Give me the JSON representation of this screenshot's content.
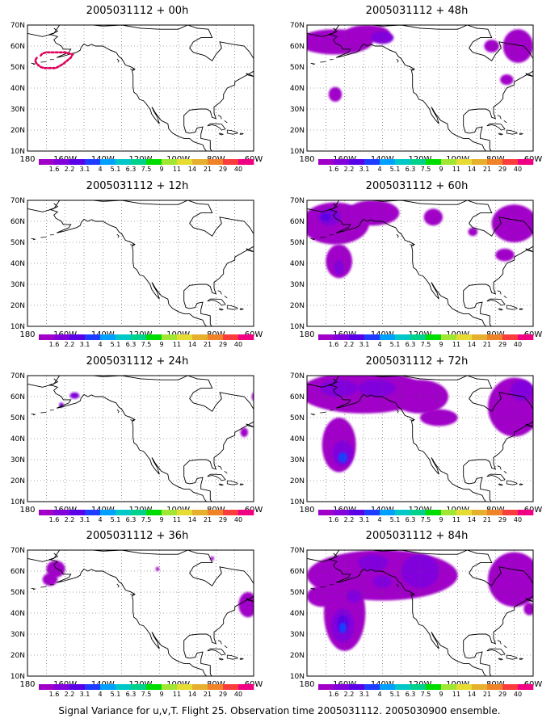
{
  "caption": "Signal Variance for u,v,T. Flight 25. Observation time 2005031112. 2005030900 ensemble.",
  "axes": {
    "lat_labels": [
      "70N",
      "60N",
      "50N",
      "40N",
      "30N",
      "20N",
      "10N"
    ],
    "lon_labels": [
      "180",
      "160W",
      "140W",
      "120W",
      "100W",
      "80W",
      "60W"
    ]
  },
  "colorbar": {
    "labels": [
      "1.6",
      "2.2",
      "3.1",
      "4",
      "5.1",
      "6.3",
      "7.5",
      "9",
      "11",
      "14",
      "21",
      "29",
      "40"
    ],
    "colors": [
      "#a000c8",
      "#8200dc",
      "#5a00e6",
      "#1e3cff",
      "#00a0ff",
      "#00c8c8",
      "#00d28c",
      "#00dc00",
      "#a0e632",
      "#e6dc32",
      "#e6af2d",
      "#f08228",
      "#fa3c3c",
      "#f00082"
    ]
  },
  "chart_data": [
    {
      "type": "heatmap",
      "title": "2005031112 + 00h",
      "xlim": [
        -180,
        -60
      ],
      "ylim": [
        10,
        70
      ],
      "overlay": {
        "type": "contour-dotted",
        "color": "#e0005a",
        "lon": [
          -173,
          -172,
          -170,
          -168,
          -166,
          -164,
          -162,
          -160,
          -158,
          -156,
          -157,
          -159,
          -161,
          -163,
          -165,
          -167,
          -169,
          -171,
          -173,
          -175,
          -176,
          -175
        ],
        "lat": [
          55.5,
          56.5,
          57,
          57,
          57,
          57,
          57,
          57,
          56.5,
          56,
          54.5,
          53,
          51.5,
          50.5,
          49.5,
          49.5,
          49.5,
          49.5,
          50,
          51.5,
          53,
          54.5
        ]
      },
      "blobs": []
    },
    {
      "type": "heatmap",
      "title": "2005031112 + 12h",
      "xlim": [
        -180,
        -60
      ],
      "ylim": [
        10,
        70
      ],
      "blobs": []
    },
    {
      "type": "heatmap",
      "title": "2005031112 + 24h",
      "xlim": [
        -180,
        -60
      ],
      "ylim": [
        10,
        70
      ],
      "blobs": [
        {
          "lon": -155,
          "lat": 60.5,
          "rx": 2.5,
          "ry": 1.5,
          "level": 1
        },
        {
          "lon": -162,
          "lat": 56,
          "rx": 1.2,
          "ry": 1.2,
          "level": 1
        },
        {
          "lon": -65,
          "lat": 43,
          "rx": 2,
          "ry": 2.2,
          "level": 0
        },
        {
          "lon": -60,
          "lat": 60,
          "rx": 1,
          "ry": 2,
          "level": 0
        }
      ]
    },
    {
      "type": "heatmap",
      "title": "2005031112 + 36h",
      "xlim": [
        -180,
        -60
      ],
      "ylim": [
        10,
        70
      ],
      "blobs": [
        {
          "lon": -165,
          "lat": 61,
          "rx": 5,
          "ry": 4,
          "level": 0
        },
        {
          "lon": -168,
          "lat": 56,
          "rx": 4,
          "ry": 3,
          "level": 0
        },
        {
          "lon": -111,
          "lat": 61,
          "rx": 1,
          "ry": 1,
          "level": 0
        },
        {
          "lon": -82,
          "lat": 66,
          "rx": 1,
          "ry": 1,
          "level": 0
        },
        {
          "lon": -63,
          "lat": 44,
          "rx": 5,
          "ry": 6,
          "level": 0
        }
      ]
    },
    {
      "type": "heatmap",
      "title": "2005031112 + 48h",
      "xlim": [
        -180,
        -60
      ],
      "ylim": [
        10,
        70
      ],
      "blobs": [
        {
          "lon": -165,
          "lat": 62,
          "rx": 20,
          "ry": 6,
          "level": 0
        },
        {
          "lon": -148,
          "lat": 66,
          "rx": 12,
          "ry": 4,
          "level": 0
        },
        {
          "lon": -140,
          "lat": 64,
          "rx": 6,
          "ry": 3,
          "level": 1
        },
        {
          "lon": -165,
          "lat": 37,
          "rx": 3.5,
          "ry": 3.5,
          "level": 0
        },
        {
          "lon": -82,
          "lat": 60,
          "rx": 4,
          "ry": 3,
          "level": 0
        },
        {
          "lon": -68,
          "lat": 60,
          "rx": 8,
          "ry": 8,
          "level": 0
        },
        {
          "lon": -74,
          "lat": 44,
          "rx": 3.5,
          "ry": 2.5,
          "level": 0
        }
      ]
    },
    {
      "type": "heatmap",
      "title": "2005031112 + 60h",
      "xlim": [
        -180,
        -60
      ],
      "ylim": [
        10,
        70
      ],
      "blobs": [
        {
          "lon": -165,
          "lat": 59,
          "rx": 18,
          "ry": 10,
          "level": 0
        },
        {
          "lon": -145,
          "lat": 64,
          "rx": 14,
          "ry": 6,
          "level": 0
        },
        {
          "lon": -168,
          "lat": 62,
          "rx": 6,
          "ry": 4,
          "level": 1
        },
        {
          "lon": -170,
          "lat": 62,
          "rx": 2.5,
          "ry": 2,
          "level": 2
        },
        {
          "lon": -163,
          "lat": 41,
          "rx": 7,
          "ry": 8,
          "level": 0
        },
        {
          "lon": -163,
          "lat": 38,
          "rx": 2.5,
          "ry": 3.5,
          "level": 1
        },
        {
          "lon": -113,
          "lat": 62,
          "rx": 5,
          "ry": 4,
          "level": 0
        },
        {
          "lon": -92,
          "lat": 55,
          "rx": 2.5,
          "ry": 2,
          "level": 0
        },
        {
          "lon": -70,
          "lat": 59,
          "rx": 12,
          "ry": 9,
          "level": 0
        },
        {
          "lon": -75,
          "lat": 44,
          "rx": 5,
          "ry": 3,
          "level": 0
        }
      ]
    },
    {
      "type": "heatmap",
      "title": "2005031112 + 72h",
      "xlim": [
        -180,
        -60
      ],
      "ylim": [
        10,
        70
      ],
      "blobs": [
        {
          "lon": -150,
          "lat": 62,
          "rx": 34,
          "ry": 10,
          "level": 0
        },
        {
          "lon": -120,
          "lat": 60,
          "rx": 15,
          "ry": 8,
          "level": 0
        },
        {
          "lon": -163,
          "lat": 37,
          "rx": 9,
          "ry": 13,
          "level": 0
        },
        {
          "lon": -161,
          "lat": 33,
          "rx": 5.5,
          "ry": 6,
          "level": 1
        },
        {
          "lon": -161,
          "lat": 31,
          "rx": 2.5,
          "ry": 2.5,
          "level": 3
        },
        {
          "lon": -163,
          "lat": 64,
          "rx": 10,
          "ry": 4,
          "level": 1
        },
        {
          "lon": -143,
          "lat": 64,
          "rx": 10,
          "ry": 4,
          "level": 1
        },
        {
          "lon": -110,
          "lat": 50,
          "rx": 10,
          "ry": 4,
          "level": 0
        },
        {
          "lon": -70,
          "lat": 55,
          "rx": 14,
          "ry": 14,
          "level": 0
        },
        {
          "lon": -66,
          "lat": 63,
          "rx": 6,
          "ry": 5,
          "level": 1
        }
      ]
    },
    {
      "type": "heatmap",
      "title": "2005031112 + 84h",
      "xlim": [
        -180,
        -60
      ],
      "ylim": [
        10,
        70
      ],
      "blobs": [
        {
          "lon": -140,
          "lat": 58,
          "rx": 40,
          "ry": 12,
          "level": 0
        },
        {
          "lon": -160,
          "lat": 40,
          "rx": 11,
          "ry": 18,
          "level": 0
        },
        {
          "lon": -161,
          "lat": 34,
          "rx": 6,
          "ry": 8,
          "level": 1
        },
        {
          "lon": -161,
          "lat": 35,
          "rx": 3,
          "ry": 4,
          "level": 2
        },
        {
          "lon": -161,
          "lat": 33,
          "rx": 2,
          "ry": 2.5,
          "level": 3
        },
        {
          "lon": -145,
          "lat": 64,
          "rx": 8,
          "ry": 4,
          "level": 1
        },
        {
          "lon": -155,
          "lat": 48,
          "rx": 4,
          "ry": 3,
          "level": 1
        },
        {
          "lon": -140,
          "lat": 55,
          "rx": 5,
          "ry": 3,
          "level": 1
        },
        {
          "lon": -120,
          "lat": 60,
          "rx": 10,
          "ry": 8,
          "level": 1
        },
        {
          "lon": -172,
          "lat": 48,
          "rx": 8,
          "ry": 5,
          "level": 0
        },
        {
          "lon": -70,
          "lat": 56,
          "rx": 14,
          "ry": 13,
          "level": 0
        },
        {
          "lon": -62,
          "lat": 42,
          "rx": 3,
          "ry": 3,
          "level": 0
        }
      ]
    }
  ]
}
